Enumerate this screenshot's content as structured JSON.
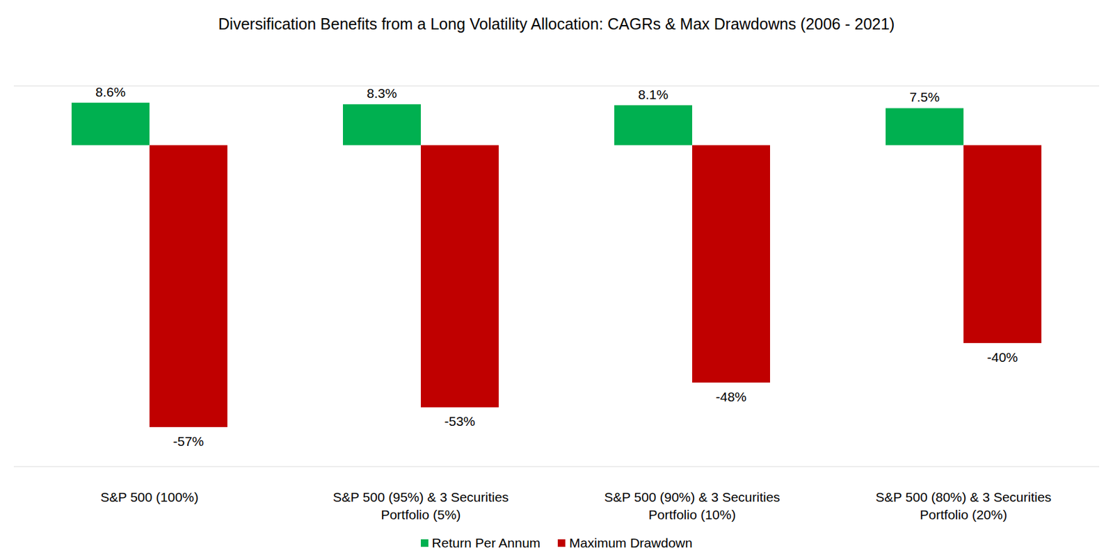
{
  "chart_data": {
    "type": "bar",
    "title": "Diversification Benefits from a Long Volatility Allocation: CAGRs & Max Drawdowns (2006 - 2021)",
    "categories": [
      "S&P 500 (100%)",
      "S&P 500 (95%) & 3 Securities Portfolio (5%)",
      "S&P 500 (90%) & 3 Securities Portfolio (10%)",
      "S&P 500 (80%) & 3 Securities Portfolio (20%)"
    ],
    "series": [
      {
        "name": "Return Per Annum",
        "color": "#00b050",
        "values": [
          8.6,
          8.3,
          8.1,
          7.5
        ],
        "value_labels": [
          "8.6%",
          "8.3%",
          "8.1%",
          "7.5%"
        ]
      },
      {
        "name": "Maximum Drawdown",
        "color": "#c00000",
        "values": [
          -57,
          -53,
          -48,
          -40
        ],
        "value_labels": [
          "-57%",
          "-53%",
          "-48%",
          "-40%"
        ]
      }
    ],
    "ylim": [
      -65,
      12
    ],
    "yticks": [
      0
    ],
    "grid": true,
    "tick_labels": "x",
    "data_labels": true,
    "legend": "bottom"
  }
}
